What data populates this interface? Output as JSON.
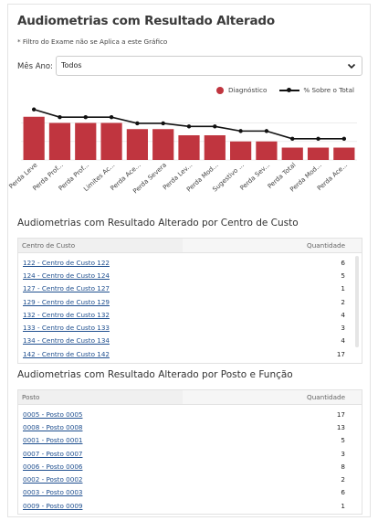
{
  "page": {
    "title": "Audiometrias com Resultado Alterado",
    "note": "* Filtro do Exame não se Aplica a este Gráfico",
    "filter_label": "Mês Ano:",
    "filter_value": "Todos"
  },
  "legend": {
    "bar_label": "Diagnóstico",
    "line_label": "% Sobre o Total"
  },
  "colors": {
    "bar": "#c0353f",
    "line": "#111111"
  },
  "chart_data": {
    "type": "bar",
    "categories": [
      "Perda Leve",
      "Perda Prof...",
      "Perda Prof...",
      "Limites Ac...",
      "Perda Ace...",
      "Perda Severa",
      "Perda Lev...",
      "Perda Mod...",
      "Sugestivo ...",
      "Perda Sev...",
      "Perda Total",
      "Perda Mod...",
      "Perda Ace..."
    ],
    "series": [
      {
        "name": "Diagnóstico",
        "type": "bar",
        "values": [
          14,
          12,
          12,
          12,
          10,
          10,
          8,
          8,
          6,
          6,
          4,
          4,
          4
        ]
      },
      {
        "name": "% Sobre o Total",
        "type": "line",
        "values": [
          14.0,
          11.5,
          11.5,
          11.5,
          9.5,
          9.5,
          8.5,
          8.5,
          7.0,
          7.0,
          4.5,
          4.5,
          4.5
        ]
      }
    ],
    "grid": true
  },
  "cc_table": {
    "title": "Audiometrias com Resultado Alterado por Centro de Custo",
    "col1": "Centro de Custo",
    "col2": "Quantidade",
    "rows": [
      {
        "name": "122 - Centro de Custo 122",
        "qty": "6"
      },
      {
        "name": "124 - Centro de Custo 124",
        "qty": "5"
      },
      {
        "name": "127 - Centro de Custo 127",
        "qty": "1"
      },
      {
        "name": "129 - Centro de Custo 129",
        "qty": "2"
      },
      {
        "name": "132 - Centro de Custo 132",
        "qty": "4"
      },
      {
        "name": "133 - Centro de Custo 133",
        "qty": "3"
      },
      {
        "name": "134 - Centro de Custo 134",
        "qty": "4"
      },
      {
        "name": "142 - Centro de Custo 142",
        "qty": "17"
      }
    ]
  },
  "posto_table": {
    "title": "Audiometrias com Resultado Alterado por Posto e Função",
    "col1": "Posto",
    "col2": "Quantidade",
    "rows": [
      {
        "name": "0005 - Posto 0005",
        "qty": "17"
      },
      {
        "name": "0008 - Posto 0008",
        "qty": "13"
      },
      {
        "name": "0001 - Posto 0001",
        "qty": "5"
      },
      {
        "name": "0007 - Posto 0007",
        "qty": "3"
      },
      {
        "name": "0006 - Posto 0006",
        "qty": "8"
      },
      {
        "name": "0002 - Posto 0002",
        "qty": "2"
      },
      {
        "name": "0003 - Posto 0003",
        "qty": "6"
      },
      {
        "name": "0009 - Posto 0009",
        "qty": "1"
      }
    ]
  }
}
